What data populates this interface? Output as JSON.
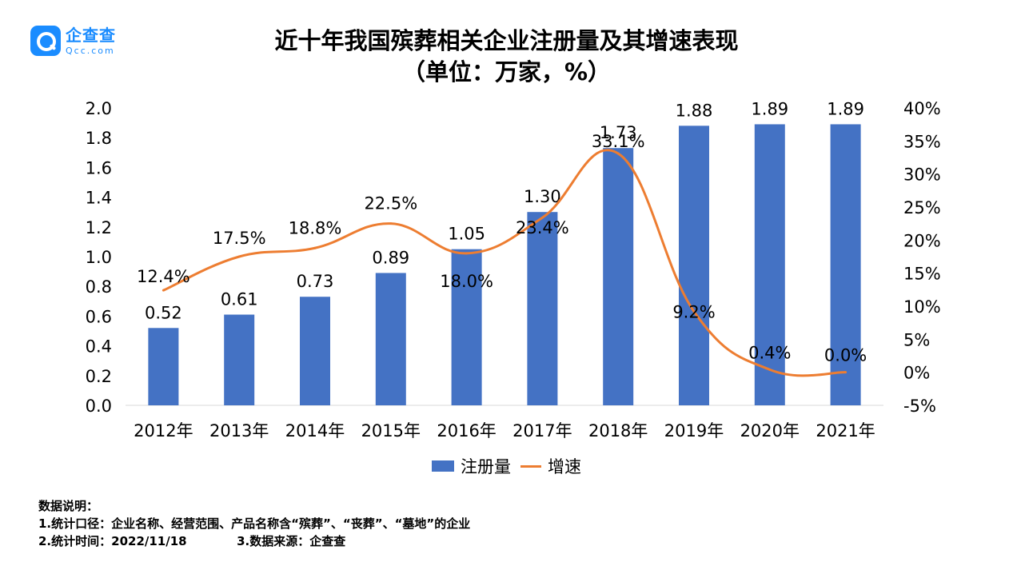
{
  "logo": {
    "cn": "企查查",
    "en": "Qcc.com"
  },
  "title_line1": "近十年我国殡葬相关企业注册量及其增速表现",
  "title_line2": "（单位：万家，%）",
  "legend": {
    "bar": "注册量",
    "line": "增速"
  },
  "notes": {
    "heading": "数据说明：",
    "line1": "1.统计口径：企业名称、经营范围、产品名称含“殡葬”、“丧葬”、“墓地”的企业",
    "line2a": "2.统计时间：2022/11/18",
    "line2b": "3.数据来源：企查查"
  },
  "chart_data": {
    "type": "bar",
    "categories": [
      "2012年",
      "2013年",
      "2014年",
      "2015年",
      "2016年",
      "2017年",
      "2018年",
      "2019年",
      "2020年",
      "2021年"
    ],
    "series": [
      {
        "name": "注册量",
        "type": "bar",
        "axis": "left",
        "color": "#4472c4",
        "values": [
          0.52,
          0.61,
          0.73,
          0.89,
          1.05,
          1.3,
          1.73,
          1.88,
          1.89,
          1.89
        ],
        "labels": [
          "0.52",
          "0.61",
          "0.73",
          "0.89",
          "1.05",
          "1.30",
          "1.73",
          "1.88",
          "1.89",
          "1.89"
        ]
      },
      {
        "name": "增速",
        "type": "line",
        "axis": "right",
        "color": "#ed7d31",
        "values": [
          12.4,
          17.5,
          18.8,
          22.5,
          18.0,
          23.4,
          33.1,
          9.2,
          0.4,
          0.0
        ],
        "labels": [
          "12.4%",
          "17.5%",
          "18.8%",
          "22.5%",
          "18.0%",
          "23.4%",
          "33.1%",
          "9.2%",
          "0.4%",
          "0.0%"
        ]
      }
    ],
    "y_left": {
      "min": 0,
      "max": 2.0,
      "ticks": [
        "0.0",
        "0.2",
        "0.4",
        "0.6",
        "0.8",
        "1.0",
        "1.2",
        "1.4",
        "1.6",
        "1.8",
        "2.0"
      ]
    },
    "y_right": {
      "min": -5,
      "max": 40,
      "ticks": [
        "-5%",
        "0%",
        "5%",
        "10%",
        "15%",
        "20%",
        "25%",
        "30%",
        "35%",
        "40%"
      ]
    },
    "legend_position": "bottom",
    "grid": false
  }
}
